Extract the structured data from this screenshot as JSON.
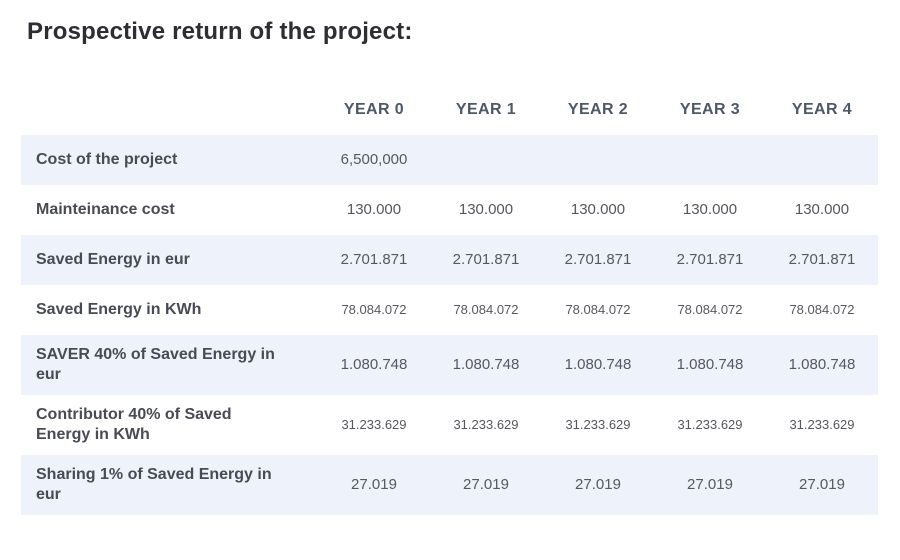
{
  "page": {
    "title": "Prospective return of the project:"
  },
  "table": {
    "columns": [
      "YEAR 0",
      "YEAR 1",
      "YEAR 2",
      "YEAR 3",
      "YEAR 4"
    ],
    "rows": [
      {
        "label": "Cost of the project",
        "values": [
          "6,500,000",
          "",
          "",
          "",
          ""
        ],
        "small": false
      },
      {
        "label": "Mainteinance cost",
        "values": [
          "130.000",
          "130.000",
          "130.000",
          "130.000",
          "130.000"
        ],
        "small": false
      },
      {
        "label": "Saved Energy in eur",
        "values": [
          "2.701.871",
          "2.701.871",
          "2.701.871",
          "2.701.871",
          "2.701.871"
        ],
        "small": false
      },
      {
        "label": "Saved Energy in KWh",
        "values": [
          "78.084.072",
          "78.084.072",
          "78.084.072",
          "78.084.072",
          "78.084.072"
        ],
        "small": true
      },
      {
        "label": "SAVER 40% of Saved Energy in\neur",
        "values": [
          "1.080.748",
          "1.080.748",
          "1.080.748",
          "1.080.748",
          "1.080.748"
        ],
        "small": false
      },
      {
        "label": "Contributor 40% of Saved\nEnergy in KWh",
        "values": [
          "31.233.629",
          "31.233.629",
          "31.233.629",
          "31.233.629",
          "31.233.629"
        ],
        "small": true
      },
      {
        "label": "Sharing 1% of Saved Energy in\neur",
        "values": [
          "27.019",
          "27.019",
          "27.019",
          "27.019",
          "27.019"
        ],
        "small": false
      }
    ],
    "colors": {
      "stripe_background": "#eef2fa",
      "title_text": "#2d2d33",
      "header_text": "#4e5868",
      "label_text": "#494b54",
      "value_text": "#57585f"
    }
  }
}
